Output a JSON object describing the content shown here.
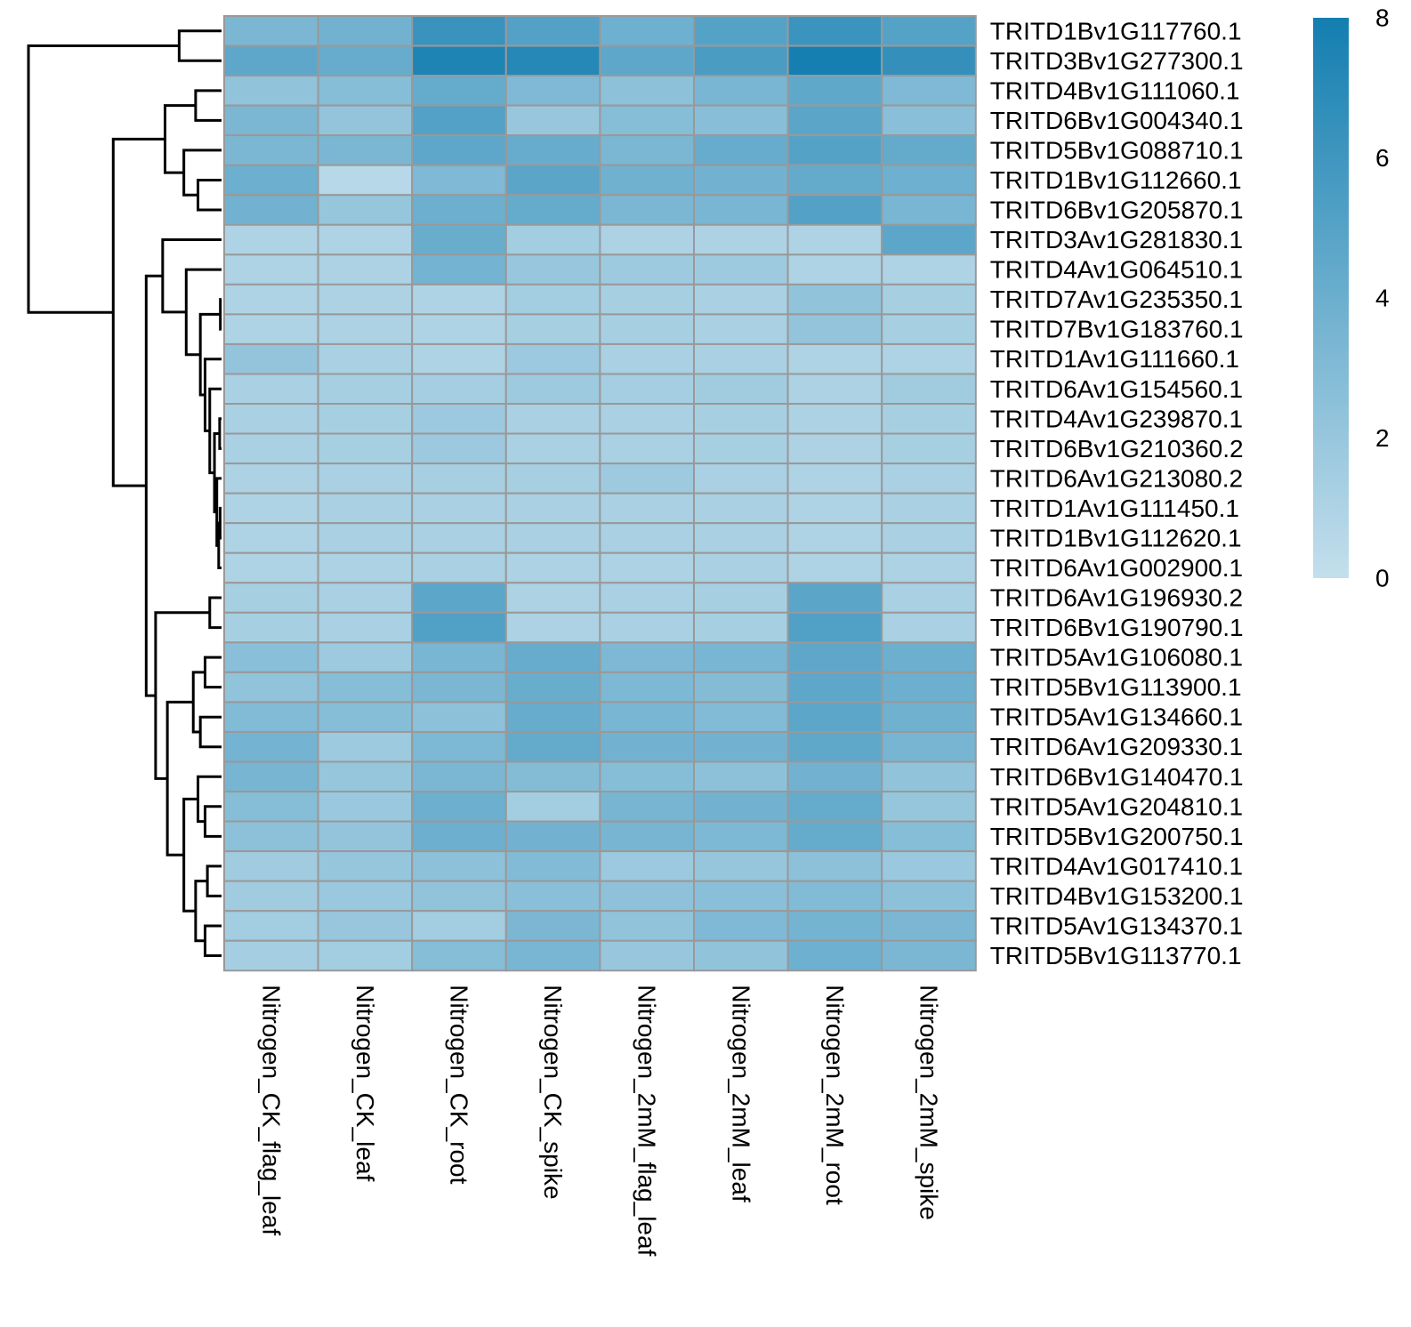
{
  "chart_data": {
    "type": "heatmap",
    "title": "",
    "columns": [
      "Nitrogen_CK_flag_leaf",
      "Nitrogen_CK_leaf",
      "Nitrogen_CK_root",
      "Nitrogen_CK_spike",
      "Nitrogen_2mM_flag_leaf",
      "Nitrogen_2mM_leaf",
      "Nitrogen_2mM_root",
      "Nitrogen_2mM_spike"
    ],
    "rows": [
      "TRITD1Bv1G117760.1",
      "TRITD3Bv1G277300.1",
      "TRITD4Bv1G111060.1",
      "TRITD6Bv1G004340.1",
      "TRITD5Bv1G088710.1",
      "TRITD1Bv1G112660.1",
      "TRITD6Bv1G205870.1",
      "TRITD3Av1G281830.1",
      "TRITD4Av1G064510.1",
      "TRITD7Av1G235350.1",
      "TRITD7Bv1G183760.1",
      "TRITD1Av1G111660.1",
      "TRITD6Av1G154560.1",
      "TRITD4Av1G239870.1",
      "TRITD6Bv1G210360.2",
      "TRITD6Av1G213080.2",
      "TRITD1Av1G111450.1",
      "TRITD1Bv1G112620.1",
      "TRITD6Av1G002900.1",
      "TRITD6Av1G196930.2",
      "TRITD6Bv1G190790.1",
      "TRITD5Av1G106080.1",
      "TRITD5Bv1G113900.1",
      "TRITD5Av1G134660.1",
      "TRITD6Av1G209330.1",
      "TRITD6Bv1G140470.1",
      "TRITD5Av1G204810.1",
      "TRITD5Bv1G200750.1",
      "TRITD4Av1G017410.1",
      "TRITD4Bv1G153200.1",
      "TRITD5Av1G134370.1",
      "TRITD5Bv1G113770.1"
    ],
    "values": [
      [
        3.3,
        3.7,
        6.3,
        5.1,
        3.9,
        5.0,
        6.2,
        5.0
      ],
      [
        4.6,
        4.2,
        7.5,
        7.2,
        4.6,
        5.5,
        7.9,
        6.5
      ],
      [
        2.3,
        2.8,
        4.3,
        3.1,
        2.5,
        3.4,
        4.5,
        3.1
      ],
      [
        3.3,
        2.2,
        5.1,
        2.0,
        2.8,
        2.7,
        4.8,
        2.6
      ],
      [
        3.3,
        3.3,
        4.6,
        4.2,
        3.3,
        4.2,
        5.0,
        4.4
      ],
      [
        4.0,
        0.6,
        3.1,
        4.8,
        3.8,
        3.7,
        4.4,
        3.9
      ],
      [
        3.7,
        2.1,
        4.0,
        4.3,
        3.3,
        3.4,
        5.1,
        3.4
      ],
      [
        1.0,
        1.0,
        4.1,
        1.5,
        1.1,
        1.1,
        1.0,
        4.7
      ],
      [
        1.0,
        1.1,
        3.6,
        2.0,
        1.7,
        1.7,
        1.0,
        1.0
      ],
      [
        1.0,
        1.1,
        1.0,
        1.5,
        1.3,
        1.2,
        2.3,
        1.3
      ],
      [
        1.0,
        1.1,
        1.0,
        1.3,
        1.3,
        1.2,
        2.2,
        1.3
      ],
      [
        2.2,
        1.2,
        1.0,
        1.8,
        1.2,
        1.2,
        1.0,
        1.0
      ],
      [
        1.2,
        1.3,
        1.4,
        1.7,
        1.4,
        1.6,
        1.1,
        1.6
      ],
      [
        1.2,
        1.3,
        1.8,
        1.2,
        1.2,
        1.3,
        1.1,
        1.3
      ],
      [
        1.2,
        1.3,
        1.8,
        1.2,
        1.2,
        1.3,
        1.1,
        1.3
      ],
      [
        1.1,
        1.2,
        1.3,
        1.3,
        1.7,
        1.2,
        1.0,
        1.2
      ],
      [
        1.0,
        1.2,
        1.2,
        1.2,
        1.2,
        1.2,
        1.0,
        1.2
      ],
      [
        1.0,
        1.2,
        1.2,
        1.2,
        1.2,
        1.2,
        1.0,
        1.2
      ],
      [
        1.0,
        1.1,
        1.2,
        1.1,
        1.1,
        1.2,
        1.0,
        1.1
      ],
      [
        1.3,
        1.2,
        4.7,
        1.1,
        1.2,
        1.3,
        4.8,
        1.2
      ],
      [
        1.3,
        1.2,
        5.2,
        1.1,
        1.2,
        1.3,
        5.2,
        1.2
      ],
      [
        2.6,
        1.7,
        3.4,
        4.2,
        3.2,
        3.4,
        4.6,
        4.0
      ],
      [
        2.3,
        2.8,
        3.3,
        4.1,
        3.2,
        2.9,
        4.6,
        4.0
      ],
      [
        3.0,
        2.8,
        2.5,
        4.2,
        3.4,
        3.0,
        4.7,
        3.8
      ],
      [
        3.6,
        1.7,
        3.2,
        4.4,
        3.7,
        3.7,
        4.5,
        3.5
      ],
      [
        3.5,
        2.1,
        3.3,
        2.9,
        2.8,
        2.5,
        3.7,
        2.3
      ],
      [
        2.8,
        1.9,
        4.0,
        1.5,
        3.5,
        3.7,
        4.3,
        2.1
      ],
      [
        2.5,
        2.2,
        4.0,
        3.7,
        3.5,
        3.2,
        4.3,
        2.8
      ],
      [
        1.6,
        2.1,
        2.5,
        3.0,
        1.8,
        2.1,
        2.5,
        1.9
      ],
      [
        1.6,
        1.9,
        2.3,
        2.6,
        2.4,
        2.6,
        3.0,
        2.5
      ],
      [
        1.5,
        2.0,
        1.5,
        3.3,
        2.3,
        3.1,
        3.6,
        3.3
      ],
      [
        1.4,
        1.5,
        2.8,
        3.4,
        2.0,
        2.3,
        3.9,
        3.3
      ]
    ],
    "scale": {
      "min": 0,
      "max": 8,
      "ticks": [
        0,
        2,
        4,
        6,
        8
      ],
      "low_color": "#c4dfec",
      "high_color": "#137eb0"
    },
    "cell_border_color": "#999999",
    "row_dendrogram": {
      "merges": [
        [
          [
            9
          ],
          [
            10
          ],
          0.05
        ],
        [
          [
            13
          ],
          [
            14
          ],
          0.08
        ],
        [
          [
            16
          ],
          [
            17
          ],
          0.06
        ],
        [
          [
            16,
            17
          ],
          [
            18
          ],
          0.12
        ],
        [
          [
            15
          ],
          [
            16,
            17,
            18
          ],
          0.2
        ],
        [
          [
            13,
            14
          ],
          [
            15,
            16,
            17,
            18
          ],
          0.3
        ],
        [
          [
            12
          ],
          [
            13,
            14,
            15,
            16,
            17,
            18
          ],
          0.5
        ],
        [
          [
            11
          ],
          [
            12,
            13,
            14,
            15,
            16,
            17,
            18
          ],
          0.7
        ],
        [
          [
            9,
            10
          ],
          [
            11,
            12,
            13,
            14,
            15,
            16,
            17,
            18
          ],
          0.9
        ],
        [
          [
            8
          ],
          [
            9,
            10,
            11,
            12,
            13,
            14,
            15,
            16,
            17,
            18
          ],
          1.5
        ],
        [
          [
            7
          ],
          [
            8,
            9,
            10,
            11,
            12,
            13,
            14,
            15,
            16,
            17,
            18
          ],
          2.5
        ],
        [
          [
            19
          ],
          [
            20
          ],
          0.5
        ],
        [
          [
            21
          ],
          [
            22
          ],
          0.7
        ],
        [
          [
            23
          ],
          [
            24
          ],
          0.9
        ],
        [
          [
            21,
            22
          ],
          [
            23,
            24
          ],
          1.2
        ],
        [
          [
            26
          ],
          [
            27
          ],
          0.7
        ],
        [
          [
            25
          ],
          [
            26,
            27
          ],
          1.0
        ],
        [
          [
            28
          ],
          [
            29
          ],
          0.6
        ],
        [
          [
            30
          ],
          [
            31
          ],
          0.7
        ],
        [
          [
            28,
            29
          ],
          [
            30,
            31
          ],
          1.1
        ],
        [
          [
            25,
            26,
            27
          ],
          [
            28,
            29,
            30,
            31
          ],
          1.6
        ],
        [
          [
            21,
            22,
            23,
            24
          ],
          [
            25,
            26,
            27,
            28,
            29,
            30,
            31
          ],
          2.3
        ],
        [
          [
            19,
            20
          ],
          [
            21,
            22,
            23,
            24,
            25,
            26,
            27,
            28,
            29,
            30,
            31
          ],
          2.8
        ],
        [
          [
            7,
            8,
            9,
            10,
            11,
            12,
            13,
            14,
            15,
            16,
            17,
            18
          ],
          [
            19,
            20,
            21,
            22,
            23,
            24,
            25,
            26,
            27,
            28,
            29,
            30,
            31
          ],
          3.2
        ],
        [
          [
            5
          ],
          [
            6
          ],
          1.0
        ],
        [
          [
            4
          ],
          [
            5,
            6
          ],
          1.6
        ],
        [
          [
            2
          ],
          [
            3
          ],
          1.1
        ],
        [
          [
            2,
            3
          ],
          [
            4,
            5,
            6
          ],
          2.4
        ],
        [
          [
            2,
            3,
            4,
            5,
            6
          ],
          [
            7,
            8,
            9,
            10,
            11,
            12,
            13,
            14,
            15,
            16,
            17,
            18,
            19,
            20,
            21,
            22,
            23,
            24,
            25,
            26,
            27,
            28,
            29,
            30,
            31
          ],
          4.6
        ],
        [
          [
            0
          ],
          [
            1
          ],
          1.8
        ],
        [
          [
            0,
            1
          ],
          [
            2,
            3,
            4,
            5,
            6,
            7,
            8,
            9,
            10,
            11,
            12,
            13,
            14,
            15,
            16,
            17,
            18,
            19,
            20,
            21,
            22,
            23,
            24,
            25,
            26,
            27,
            28,
            29,
            30,
            31
          ],
          8.2
        ]
      ]
    }
  }
}
